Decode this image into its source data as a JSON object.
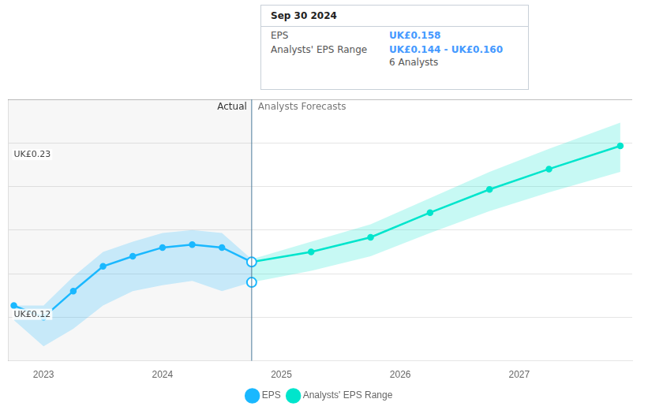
{
  "chart_data": {
    "type": "line",
    "xlim": [
      2022.7,
      2027.95
    ],
    "xticks": [
      2023,
      2024,
      2025,
      2026,
      2027
    ],
    "ylim": [
      0.09,
      0.27
    ],
    "yticks": [
      0.12,
      0.15,
      0.18,
      0.21,
      0.24
    ],
    "grid": true,
    "tick_labels": "x",
    "legend": "bottom",
    "series": [
      {
        "name": "EPS",
        "color": "#1ab8ff",
        "marker": "circle",
        "x": [
          2022.75,
          2023.0,
          2023.25,
          2023.5,
          2023.75,
          2024.0,
          2024.25,
          2024.5,
          2024.75
        ],
        "values": [
          0.128,
          0.12,
          0.138,
          0.155,
          0.162,
          0.168,
          0.17,
          0.168,
          0.158
        ],
        "band_upper": [
          0.128,
          0.128,
          0.148,
          0.165,
          0.172,
          0.178,
          0.18,
          0.178,
          0.16
        ],
        "band_lower": [
          0.118,
          0.1,
          0.112,
          0.128,
          0.138,
          0.142,
          0.145,
          0.138,
          0.144
        ]
      },
      {
        "name": "Analysts' EPS Range",
        "color": "#00e5cc",
        "marker": "circle",
        "x": [
          2024.75,
          2025.25,
          2025.75,
          2026.25,
          2026.75,
          2027.25,
          2027.85
        ],
        "values": [
          0.158,
          0.165,
          0.175,
          0.192,
          0.208,
          0.222,
          0.238
        ],
        "band_upper": [
          0.16,
          0.172,
          0.184,
          0.202,
          0.22,
          0.236,
          0.254
        ],
        "band_lower": [
          0.144,
          0.152,
          0.162,
          0.178,
          0.193,
          0.206,
          0.22
        ]
      }
    ],
    "annotations": [
      {
        "text": "UK£0.23",
        "x": 2022.75,
        "y": 0.232
      },
      {
        "text": "UK£0.12",
        "x": 2022.75,
        "y": 0.122
      }
    ],
    "divider": {
      "x": 2024.75,
      "left_label": "Actual",
      "right_label": "Analysts Forecasts"
    },
    "tooltip": {
      "x": 2024.75,
      "title": "Sep 30 2024",
      "rows": [
        {
          "label": "EPS",
          "value": "UK£0.158"
        },
        {
          "label": "Analysts' EPS Range",
          "value": "UK£0.144 - UK£0.160"
        }
      ],
      "note": "6 Analysts",
      "markers": [
        0.158,
        0.144
      ]
    }
  }
}
